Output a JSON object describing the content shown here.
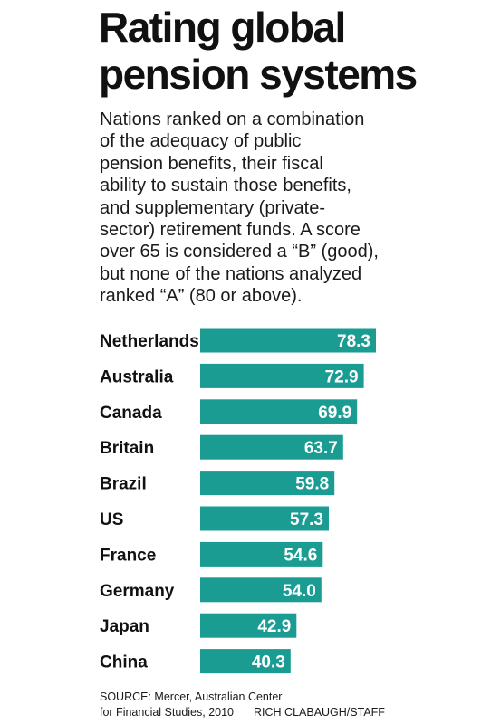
{
  "title_lines": [
    "Rating global",
    "pension systems"
  ],
  "subtitle_lines": [
    "Nations ranked on a combination",
    "of the adequacy of public",
    "pension benefits, their fiscal",
    "ability to sustain those benefits,",
    "and supplementary (private-",
    "sector) retirement funds. A score",
    "over 65 is considered a “B” (good),",
    "but none of the nations analyzed",
    "ranked “A” (80 or above)."
  ],
  "colors": {
    "bar": "#1a9c93",
    "bar_text": "#ffffff",
    "text": "#1a1a1a"
  },
  "chart_data": {
    "type": "bar",
    "orientation": "horizontal",
    "categories": [
      "Netherlands",
      "Australia",
      "Canada",
      "Britain",
      "Brazil",
      "US",
      "France",
      "Germany",
      "Japan",
      "China"
    ],
    "values": [
      78.3,
      72.9,
      69.9,
      63.7,
      59.8,
      57.3,
      54.6,
      54.0,
      42.9,
      40.3
    ],
    "value_labels": [
      "78.3",
      "72.9",
      "69.9",
      "63.7",
      "59.8",
      "57.3",
      "54.6",
      "54.0",
      "42.9",
      "40.3"
    ],
    "title": "Rating global pension systems",
    "xlabel": "",
    "ylabel": "",
    "grid": false,
    "legend": "none"
  },
  "source": {
    "line1": "SOURCE: Mercer, Australian Center",
    "line2": "for Financial Studies, 2010",
    "credit": "RICH CLABAUGH/STAFF"
  }
}
